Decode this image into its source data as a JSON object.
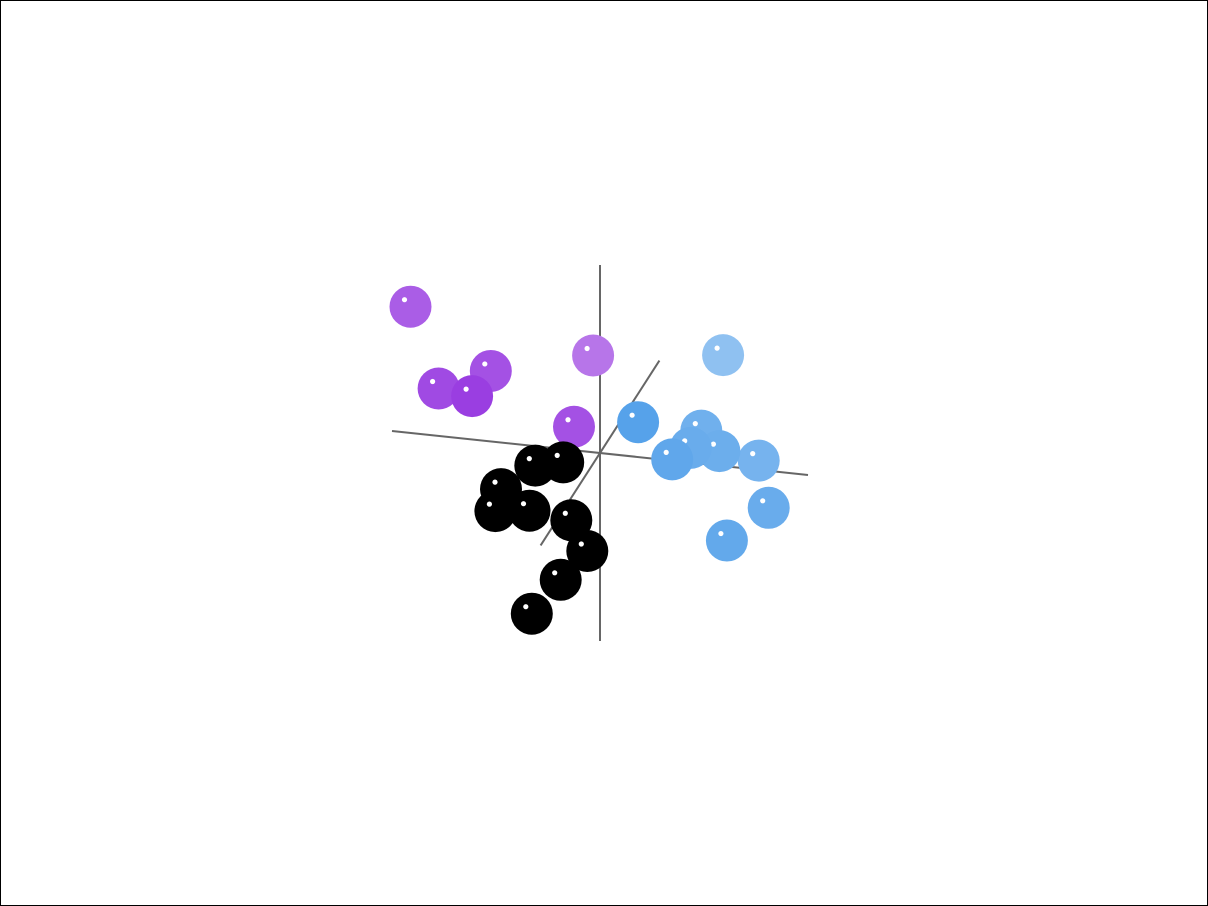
{
  "chart_data": {
    "type": "scatter",
    "title": "",
    "grid": false,
    "axes_color": "#666666",
    "series": [
      {
        "color": "#000000",
        "points": [
          [
            -0.25,
            0.05,
            0.4
          ],
          [
            -0.9,
            -0.4,
            0.2
          ],
          [
            -0.85,
            -0.45,
            0.6
          ],
          [
            -0.7,
            -0.35,
            -0.3
          ],
          [
            -0.6,
            -0.55,
            0.3
          ],
          [
            -0.25,
            -0.7,
            0.1
          ],
          [
            -0.2,
            -1.2,
            -0.3
          ],
          [
            -0.3,
            -1.25,
            0.3
          ],
          [
            -0.5,
            -1.5,
            0.6
          ]
        ]
      },
      {
        "color": "#8a1fdc",
        "points": [
          [
            -1.9,
            1.2,
            -0.3
          ],
          [
            -1.5,
            0.6,
            0.2
          ],
          [
            -1.1,
            0.7,
            0.5
          ],
          [
            -1.05,
            0.75,
            0.0
          ],
          [
            -0.3,
            0.6,
            -0.9
          ],
          [
            -0.25,
            0.25,
            0.0
          ]
        ]
      },
      {
        "color": "#4a9be8",
        "points": [
          [
            0.6,
            0.8,
            0.9
          ],
          [
            0.95,
            0.75,
            -0.9
          ],
          [
            1.0,
            0.4,
            0.1
          ],
          [
            0.85,
            0.3,
            0.6
          ],
          [
            0.95,
            0.3,
            0.3
          ],
          [
            1.2,
            0.25,
            0.2
          ],
          [
            1.5,
            0.05,
            -0.1
          ],
          [
            1.7,
            -0.25,
            0.3
          ],
          [
            1.35,
            -0.55,
            0.5
          ]
        ]
      }
    ]
  }
}
